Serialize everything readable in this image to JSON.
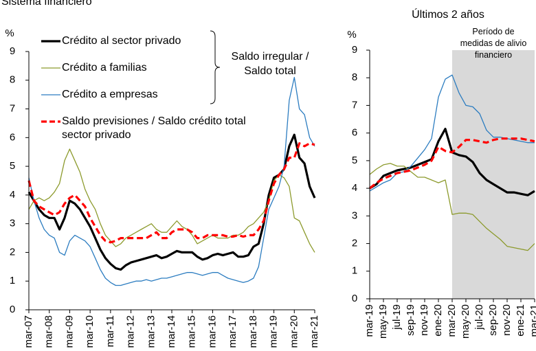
{
  "chart_data": [
    {
      "type": "line",
      "title": "Sistema financiero",
      "y_unit": "%",
      "categories": [
        "mar-07",
        null,
        null,
        null,
        "mar-08",
        null,
        null,
        null,
        "mar-09",
        null,
        null,
        null,
        "mar-10",
        null,
        null,
        null,
        "mar-11",
        null,
        null,
        null,
        "mar-12",
        null,
        null,
        null,
        "mar-13",
        null,
        null,
        null,
        "mar-14",
        null,
        null,
        null,
        "mar-15",
        null,
        null,
        null,
        "mar-16",
        null,
        null,
        null,
        "mar-17",
        null,
        null,
        null,
        "mar-18",
        null,
        null,
        null,
        "mar-19",
        null,
        null,
        null,
        "mar-20",
        null,
        null,
        null,
        "mar-21"
      ],
      "ylim": [
        0,
        9
      ],
      "yticks": [
        0,
        1,
        2,
        3,
        4,
        5,
        6,
        7,
        8,
        9
      ],
      "annotation": "Saldo irregular / Saldo total",
      "series": [
        {
          "name": "Crédito al sector privado",
          "color": "#000000",
          "style": "solid",
          "width": 3.2,
          "values": [
            4.1,
            3.8,
            3.5,
            3.3,
            3.2,
            3.2,
            2.8,
            3.2,
            3.8,
            3.7,
            3.5,
            3.2,
            2.9,
            2.5,
            2.1,
            1.8,
            1.6,
            1.45,
            1.4,
            1.55,
            1.65,
            1.7,
            1.75,
            1.8,
            1.85,
            1.9,
            1.8,
            1.85,
            1.95,
            2.05,
            2.0,
            2.0,
            2.0,
            1.85,
            1.75,
            1.8,
            1.9,
            1.95,
            1.9,
            1.95,
            2.0,
            1.85,
            1.85,
            1.9,
            2.2,
            2.3,
            3.0,
            4.0,
            4.6,
            4.7,
            4.9,
            5.7,
            6.1,
            5.3,
            5.1,
            4.3,
            3.9
          ]
        },
        {
          "name": "Crédito a familias",
          "color": "#8c9a2c",
          "style": "solid",
          "width": 1.3,
          "values": [
            3.5,
            3.8,
            3.9,
            3.8,
            3.9,
            4.1,
            4.4,
            5.2,
            5.6,
            5.2,
            4.8,
            4.2,
            3.8,
            3.5,
            3.0,
            2.6,
            2.4,
            2.2,
            2.3,
            2.5,
            2.6,
            2.7,
            2.8,
            2.9,
            3.0,
            2.8,
            2.7,
            2.7,
            2.9,
            3.1,
            2.9,
            2.8,
            2.6,
            2.3,
            2.4,
            2.5,
            2.6,
            2.5,
            2.5,
            2.5,
            2.6,
            2.6,
            2.7,
            2.9,
            3.0,
            3.2,
            3.4,
            3.8,
            4.5,
            4.7,
            4.6,
            4.3,
            3.2,
            3.1,
            2.7,
            2.3,
            2.0
          ]
        },
        {
          "name": "Crédito a empresas",
          "color": "#2b7cc0",
          "style": "solid",
          "width": 1.3,
          "values": [
            4.6,
            3.8,
            3.2,
            2.8,
            2.6,
            2.5,
            2.0,
            1.9,
            2.4,
            2.6,
            2.5,
            2.4,
            2.2,
            1.8,
            1.4,
            1.1,
            0.95,
            0.85,
            0.85,
            0.9,
            0.95,
            1.0,
            1.0,
            1.05,
            1.0,
            1.05,
            1.1,
            1.1,
            1.15,
            1.2,
            1.25,
            1.3,
            1.3,
            1.25,
            1.2,
            1.25,
            1.3,
            1.3,
            1.2,
            1.1,
            1.05,
            1.0,
            0.95,
            1.0,
            1.1,
            1.5,
            2.5,
            3.5,
            3.9,
            4.3,
            5.0,
            7.3,
            8.1,
            7.0,
            6.8,
            6.0,
            5.7
          ]
        },
        {
          "name": "Saldo previsiones / Saldo crédito total sector privado",
          "color": "#ff0000",
          "style": "dashed",
          "width": 3.2,
          "values": [
            4.5,
            3.8,
            3.6,
            3.5,
            3.4,
            3.3,
            3.4,
            3.7,
            3.9,
            4.0,
            3.8,
            3.6,
            3.2,
            2.9,
            2.6,
            2.4,
            2.35,
            2.4,
            2.5,
            2.5,
            2.5,
            2.5,
            2.5,
            2.5,
            2.6,
            2.7,
            2.5,
            2.5,
            2.7,
            2.8,
            2.8,
            2.8,
            2.7,
            2.5,
            2.5,
            2.6,
            2.6,
            2.6,
            2.6,
            2.55,
            2.55,
            2.6,
            2.55,
            2.6,
            2.6,
            2.8,
            3.1,
            3.8,
            4.4,
            4.7,
            4.9,
            5.3,
            5.3,
            5.8,
            5.7,
            5.8,
            5.75
          ]
        }
      ]
    },
    {
      "type": "line",
      "title": "Últimos 2 años",
      "y_unit": "%",
      "categories": [
        "mar-19",
        null,
        "may-19",
        null,
        "jul-19",
        null,
        "sep-19",
        null,
        "nov-19",
        null,
        "ene-20",
        null,
        "mar-20",
        null,
        "may-20",
        null,
        "jul-20",
        null,
        "sep-20",
        null,
        "nov-20",
        null,
        "ene-21",
        null,
        "mar-21"
      ],
      "ylim": [
        0,
        9
      ],
      "yticks": [
        0,
        1,
        2,
        3,
        4,
        5,
        6,
        7,
        8,
        9
      ],
      "shaded_from": "mar-20",
      "shade_color": "#d9d9d9",
      "shade_label": "Período de medidas de alivio financiero",
      "series": [
        {
          "color": "#000000",
          "style": "solid",
          "width": 3.2,
          "values": [
            4.0,
            4.15,
            4.45,
            4.55,
            4.65,
            4.7,
            4.75,
            4.85,
            4.95,
            5.05,
            5.7,
            6.15,
            5.3,
            5.2,
            5.15,
            4.95,
            4.55,
            4.3,
            4.15,
            4.0,
            3.85,
            3.85,
            3.8,
            3.75,
            3.9
          ]
        },
        {
          "color": "#8c9a2c",
          "style": "solid",
          "width": 1.3,
          "values": [
            4.5,
            4.7,
            4.85,
            4.9,
            4.8,
            4.8,
            4.6,
            4.4,
            4.4,
            4.3,
            4.2,
            4.3,
            3.05,
            3.1,
            3.1,
            3.05,
            2.8,
            2.55,
            2.35,
            2.15,
            1.9,
            1.85,
            1.8,
            1.75,
            2.0
          ]
        },
        {
          "color": "#2b7cc0",
          "style": "solid",
          "width": 1.3,
          "values": [
            3.9,
            4.05,
            4.2,
            4.3,
            4.55,
            4.6,
            4.8,
            5.1,
            5.4,
            5.8,
            7.3,
            7.95,
            8.1,
            7.45,
            7.0,
            6.95,
            6.7,
            6.1,
            5.85,
            5.85,
            5.8,
            5.75,
            5.7,
            5.65,
            5.65
          ]
        },
        {
          "color": "#ff0000",
          "style": "dashed",
          "width": 3.2,
          "values": [
            4.0,
            4.2,
            4.35,
            4.45,
            4.55,
            4.6,
            4.65,
            4.75,
            4.85,
            5.0,
            5.5,
            5.35,
            5.3,
            5.5,
            5.75,
            5.75,
            5.7,
            5.65,
            5.75,
            5.8,
            5.8,
            5.8,
            5.8,
            5.75,
            5.7
          ]
        }
      ]
    }
  ]
}
